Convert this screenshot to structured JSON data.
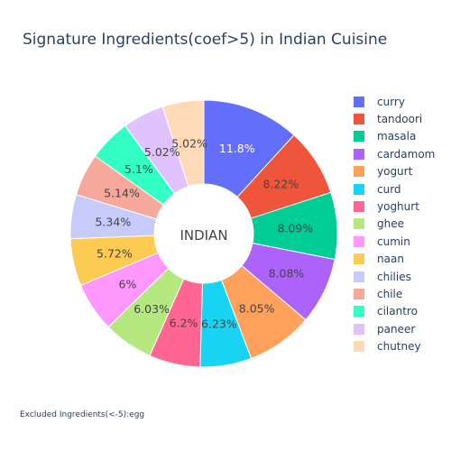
{
  "chart_data": {
    "type": "pie",
    "title": "Signature Ingredients(coef>5) in Indian Cuisine",
    "center_label": "INDIAN",
    "hole": true,
    "legend_position": "right",
    "slices": [
      {
        "label": "curry",
        "value": 11.8,
        "text": "11.8%",
        "color": "#636efa",
        "text_color": "#ffffff"
      },
      {
        "label": "tandoori",
        "value": 8.22,
        "text": "8.22%",
        "color": "#ef553b",
        "text_color": "#444444"
      },
      {
        "label": "masala",
        "value": 8.09,
        "text": "8.09%",
        "color": "#00cc96",
        "text_color": "#444444"
      },
      {
        "label": "cardamom",
        "value": 8.08,
        "text": "8.08%",
        "color": "#ab63fa",
        "text_color": "#444444"
      },
      {
        "label": "yogurt",
        "value": 8.05,
        "text": "8.05%",
        "color": "#ffa15a",
        "text_color": "#444444"
      },
      {
        "label": "curd",
        "value": 6.23,
        "text": "6.23%",
        "color": "#19d3f3",
        "text_color": "#444444"
      },
      {
        "label": "yoghurt",
        "value": 6.2,
        "text": "6.2%",
        "color": "#ff6692",
        "text_color": "#444444"
      },
      {
        "label": "ghee",
        "value": 6.03,
        "text": "6.03%",
        "color": "#b6e880",
        "text_color": "#444444"
      },
      {
        "label": "cumin",
        "value": 6.0,
        "text": "6%",
        "color": "#ff97ff",
        "text_color": "#444444"
      },
      {
        "label": "naan",
        "value": 5.72,
        "text": "5.72%",
        "color": "#fecb52",
        "text_color": "#444444"
      },
      {
        "label": "chilies",
        "value": 5.34,
        "text": "5.34%",
        "color": "#c6cbf9",
        "text_color": "#444444"
      },
      {
        "label": "chile",
        "value": 5.14,
        "text": "5.14%",
        "color": "#f6a89a",
        "text_color": "#444444"
      },
      {
        "label": "cilantro",
        "value": 5.1,
        "text": "5.1%",
        "color": "#33ffc4",
        "text_color": "#444444"
      },
      {
        "label": "paneer",
        "value": 5.02,
        "text": "5.02%",
        "color": "#e0c3fc",
        "text_color": "#444444"
      },
      {
        "label": "chutney",
        "value": 5.02,
        "text": "5.02%",
        "color": "#ffdab9",
        "text_color": "#444444"
      }
    ]
  },
  "footnote": "Excluded Ingredients(<-5):egg"
}
